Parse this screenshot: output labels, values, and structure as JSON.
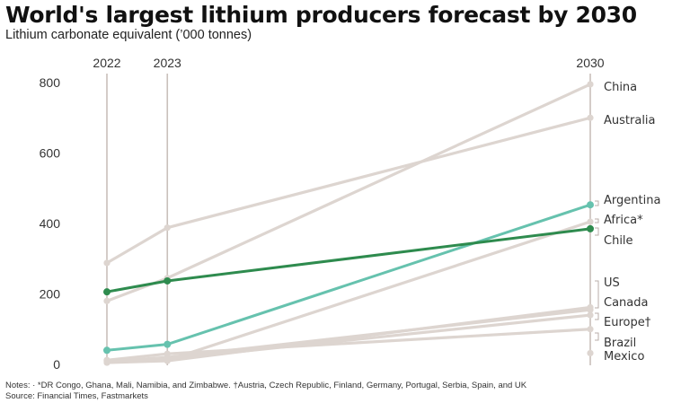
{
  "title": "World's largest lithium producers forecast by 2030",
  "subtitle": "Lithium carbonate equivalent (’000 tonnes)",
  "notes": {
    "line1": "Notes: · *DR Congo, Ghana, Mali, Namibia, and Zimbabwe. †Austria, Czech Republic, Finland, Germany, Portugal, Serbia, Spain, and UK",
    "line2": "Source: Financial Times, Fastmarkets"
  },
  "colors": {
    "grey": "#ddd5d0",
    "chile": "#2e8b4e",
    "argentina": "#66c2ae",
    "axis": "#c9c0bb"
  },
  "chart_data": {
    "type": "line",
    "title": "World's largest lithium producers forecast by 2030",
    "subtitle": "Lithium carbonate equivalent (’000 tonnes)",
    "x": [
      "2022",
      "2023",
      "2030"
    ],
    "x_values": [
      2022,
      2023,
      2030
    ],
    "ylim": [
      0,
      800
    ],
    "yticks": [
      "0",
      "200",
      "400",
      "600",
      "800"
    ],
    "ytick_values": [
      0,
      200,
      400,
      600,
      800
    ],
    "series": [
      {
        "name": "China",
        "values": [
          180,
          245,
          795
        ],
        "highlight": false
      },
      {
        "name": "Australia",
        "values": [
          288,
          388,
          700
        ],
        "highlight": false
      },
      {
        "name": "Argentina",
        "values": [
          40,
          57,
          453
        ],
        "highlight": "teal"
      },
      {
        "name": "Africa*",
        "values": [
          12,
          12,
          405
        ],
        "highlight": false
      },
      {
        "name": "Chile",
        "values": [
          206,
          237,
          385
        ],
        "highlight": "green"
      },
      {
        "name": "US",
        "values": [
          5,
          10,
          162
        ],
        "highlight": false
      },
      {
        "name": "Canada",
        "values": [
          8,
          20,
          155
        ],
        "highlight": false
      },
      {
        "name": "Europe†",
        "values": [
          10,
          15,
          140
        ],
        "highlight": false
      },
      {
        "name": "Brazil",
        "values": [
          12,
          30,
          100
        ],
        "highlight": false
      },
      {
        "name": "Mexico",
        "values": [
          null,
          null,
          32
        ],
        "highlight": false
      }
    ]
  }
}
